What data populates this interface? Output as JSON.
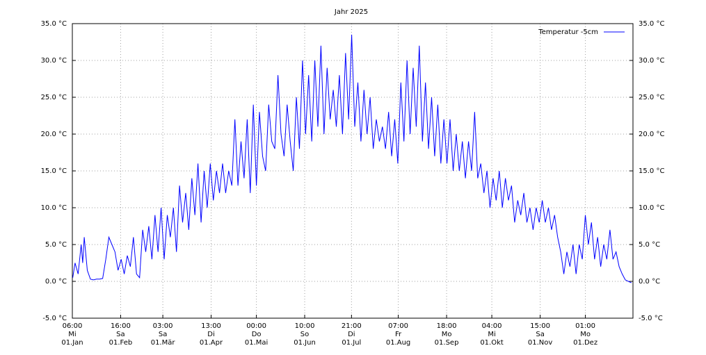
{
  "chart_data": {
    "type": "line",
    "title": "Jahr 2025",
    "xlim": [
      0.25,
      365
    ],
    "xticks": [
      {
        "value": 0.25,
        "label": [
          "06:00",
          "Mi",
          "01.Jan"
        ]
      },
      {
        "value": 31.667,
        "label": [
          "16:00",
          "Sa",
          "01.Feb"
        ]
      },
      {
        "value": 59.125,
        "label": [
          "03:00",
          "Sa",
          "01.Mär"
        ]
      },
      {
        "value": 90.542,
        "label": [
          "13:00",
          "Di",
          "01.Apr"
        ]
      },
      {
        "value": 120,
        "label": [
          "00:00",
          "Do",
          "01.Mai"
        ]
      },
      {
        "value": 151.417,
        "label": [
          "10:00",
          "So",
          "01.Jun"
        ]
      },
      {
        "value": 181.875,
        "label": [
          "21:00",
          "Di",
          "01.Jul"
        ]
      },
      {
        "value": 212.292,
        "label": [
          "07:00",
          "Fr",
          "01.Aug"
        ]
      },
      {
        "value": 243.75,
        "label": [
          "18:00",
          "Mo",
          "01.Sep"
        ]
      },
      {
        "value": 273.167,
        "label": [
          "04:00",
          "Mi",
          "01.Okt"
        ]
      },
      {
        "value": 304.625,
        "label": [
          "15:00",
          "Sa",
          "01.Nov"
        ]
      },
      {
        "value": 334.042,
        "label": [
          "01:00",
          "Mo",
          "01.Dez"
        ]
      }
    ],
    "ylim": [
      -5,
      35
    ],
    "yticks": [
      {
        "value": -5,
        "label": "-5.0 °C"
      },
      {
        "value": 0,
        "label": "0.0 °C"
      },
      {
        "value": 5,
        "label": "5.0 °C"
      },
      {
        "value": 10,
        "label": "10.0 °C"
      },
      {
        "value": 15,
        "label": "15.0 °C"
      },
      {
        "value": 20,
        "label": "20.0 °C"
      },
      {
        "value": 25,
        "label": "25.0 °C"
      },
      {
        "value": 30,
        "label": "30.0 °C"
      },
      {
        "value": 35,
        "label": "35.0 °C"
      }
    ],
    "grid": true,
    "legend": "top-right",
    "x": [
      0.5,
      2,
      4,
      6,
      7,
      8,
      10,
      12,
      14,
      16,
      18,
      20,
      22,
      24,
      26,
      28,
      30,
      32,
      34,
      36,
      38,
      40,
      42,
      44,
      46,
      48,
      50,
      52,
      54,
      56,
      58,
      60,
      62,
      64,
      66,
      68,
      70,
      72,
      74,
      76,
      78,
      80,
      82,
      84,
      86,
      88,
      90,
      92,
      94,
      96,
      98,
      100,
      102,
      104,
      106,
      108,
      110,
      112,
      114,
      116,
      118,
      120,
      122,
      124,
      126,
      128,
      130,
      132,
      134,
      136,
      138,
      140,
      142,
      144,
      146,
      148,
      150,
      152,
      154,
      156,
      158,
      160,
      162,
      164,
      166,
      168,
      170,
      172,
      174,
      176,
      178,
      180,
      182,
      184,
      186,
      188,
      190,
      192,
      194,
      196,
      198,
      200,
      202,
      204,
      206,
      208,
      210,
      212,
      214,
      216,
      218,
      220,
      222,
      224,
      226,
      228,
      230,
      232,
      234,
      236,
      238,
      240,
      242,
      244,
      246,
      248,
      250,
      252,
      254,
      256,
      258,
      260,
      262,
      264,
      266,
      268,
      270,
      272,
      274,
      276,
      278,
      280,
      282,
      284,
      286,
      288,
      290,
      292,
      294,
      296,
      298,
      300,
      302,
      304,
      306,
      308,
      310,
      312,
      314,
      316,
      318,
      320,
      322,
      324,
      326,
      328,
      330,
      332,
      334,
      336,
      338,
      340,
      342,
      344,
      346,
      348,
      350,
      352,
      354,
      356,
      358,
      360,
      362,
      364
    ],
    "series": [
      {
        "name": "Temperatur  -5cm",
        "color": "#0000ff",
        "values": [
          0.5,
          2.5,
          1,
          5,
          2.5,
          6,
          1.5,
          0.3,
          0.2,
          0.3,
          0.3,
          0.4,
          3,
          6,
          5,
          4,
          1.5,
          3,
          1,
          3.5,
          2,
          6,
          1,
          0.5,
          7,
          4,
          7.5,
          3,
          9,
          4,
          10,
          3,
          9,
          6,
          10,
          4,
          13,
          8,
          12,
          7,
          14,
          9,
          16,
          8,
          15,
          10,
          16,
          11,
          15,
          12,
          16,
          12,
          15,
          13,
          22,
          13,
          19,
          14,
          22,
          12,
          24,
          13,
          23,
          17,
          15,
          24,
          19,
          18,
          28,
          20,
          17,
          24,
          19,
          15,
          25,
          18,
          30,
          20,
          28,
          19,
          30,
          21,
          32,
          20,
          29,
          22,
          26,
          21,
          28,
          20,
          31,
          22,
          33.5,
          21,
          27,
          19,
          26,
          20,
          25,
          18,
          22,
          19,
          21,
          18,
          23,
          17,
          22,
          16,
          27,
          19,
          30,
          20,
          29,
          21,
          32,
          19,
          27,
          18,
          25,
          17,
          24,
          16,
          22,
          16,
          22,
          15,
          20,
          15,
          19,
          14,
          19,
          15,
          23,
          14,
          16,
          12,
          15,
          10,
          14,
          11,
          15,
          10,
          14,
          11,
          13,
          8,
          11,
          9,
          12,
          8,
          10,
          7,
          10,
          8,
          11,
          8,
          10,
          7,
          9,
          6,
          4,
          1,
          4,
          2,
          5,
          1,
          5,
          3,
          9,
          5,
          8,
          3,
          6,
          2,
          5,
          3,
          7,
          3,
          4,
          2,
          1,
          0.2,
          0,
          -0.2
        ]
      }
    ]
  }
}
